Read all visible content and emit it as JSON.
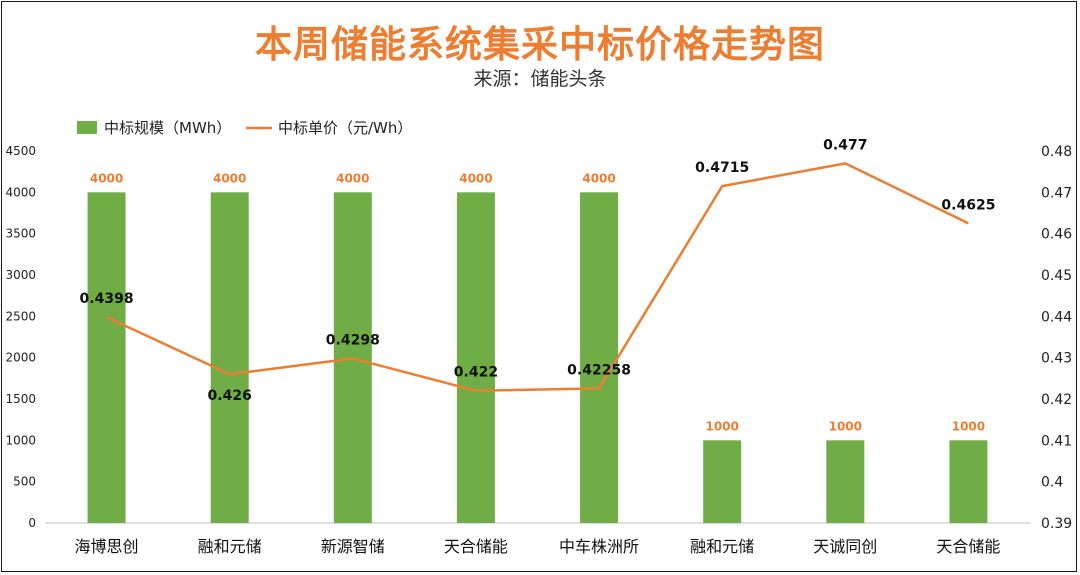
{
  "chart_data": {
    "type": "bar+line",
    "title": "本周储能系统集采中标价格走势图",
    "subtitle": "来源：储能头条",
    "categories": [
      "海博思创",
      "融和元储",
      "新源智储",
      "天合储能",
      "中车株洲所",
      "融和元储",
      "天诚同创",
      "天合储能"
    ],
    "series": [
      {
        "name": "中标规模（MWh）",
        "type": "bar",
        "axis": "left",
        "color": "#70AD47",
        "values": [
          4000,
          4000,
          4000,
          4000,
          4000,
          1000,
          1000,
          1000
        ],
        "labels": [
          "4000",
          "4000",
          "4000",
          "4000",
          "4000",
          "1000",
          "1000",
          "1000"
        ]
      },
      {
        "name": "中标单价（元/Wh）",
        "type": "line",
        "axis": "right",
        "color": "#ED7D31",
        "values": [
          0.4398,
          0.426,
          0.4298,
          0.422,
          0.42258,
          0.4715,
          0.477,
          0.4625
        ],
        "labels": [
          "0.4398",
          "0.426",
          "0.4298",
          "0.422",
          "0.42258",
          "0.4715",
          "0.477",
          "0.4625"
        ]
      }
    ],
    "y_left": {
      "range": [
        0,
        4500
      ],
      "ticks": [
        "0",
        "500",
        "1000",
        "1500",
        "2000",
        "2500",
        "3000",
        "3500",
        "4000",
        "4500"
      ]
    },
    "y_right": {
      "range": [
        0.39,
        0.48
      ],
      "ticks": [
        "0.39",
        "0.4",
        "0.41",
        "0.42",
        "0.43",
        "0.44",
        "0.45",
        "0.46",
        "0.47",
        "0.48"
      ]
    },
    "legend_position": "top-left",
    "grid": false
  }
}
